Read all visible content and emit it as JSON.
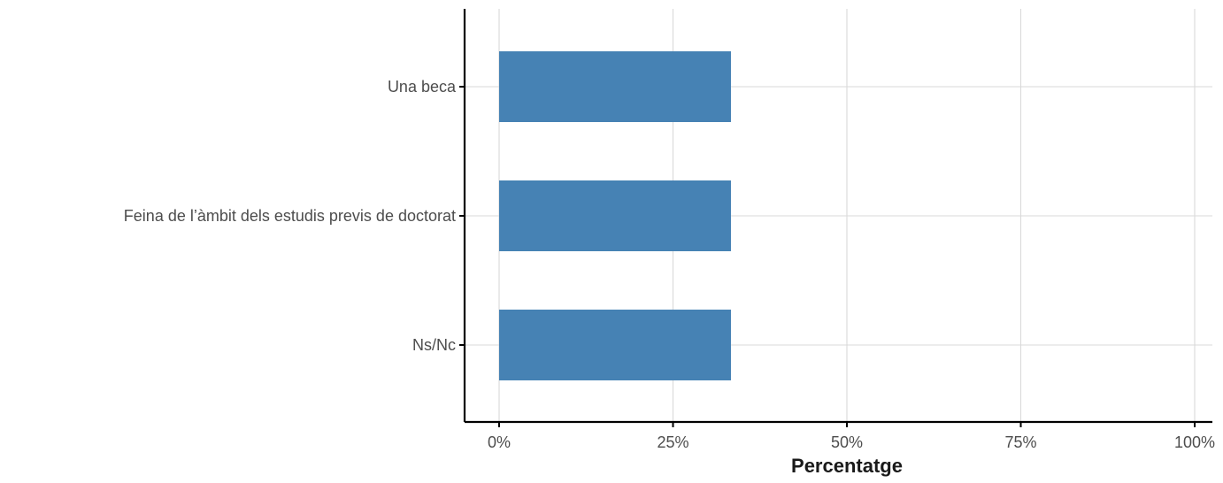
{
  "chart_data": {
    "type": "bar",
    "orientation": "horizontal",
    "categories": [
      "Una beca",
      "Feina de l’àmbit dels estudis previs de doctorat",
      "Ns/Nc"
    ],
    "values": [
      33.33,
      33.33,
      33.33
    ],
    "xlabel": "Percentatge",
    "ylabel": "",
    "xlim": [
      0,
      100
    ],
    "x_ticks": [
      0,
      25,
      50,
      75,
      100
    ],
    "x_tick_labels": [
      "0%",
      "25%",
      "50%",
      "75%",
      "100%"
    ],
    "grid": true,
    "legend": "none",
    "bar_color": "#4682B4",
    "grid_color": "#d9d9d9"
  }
}
